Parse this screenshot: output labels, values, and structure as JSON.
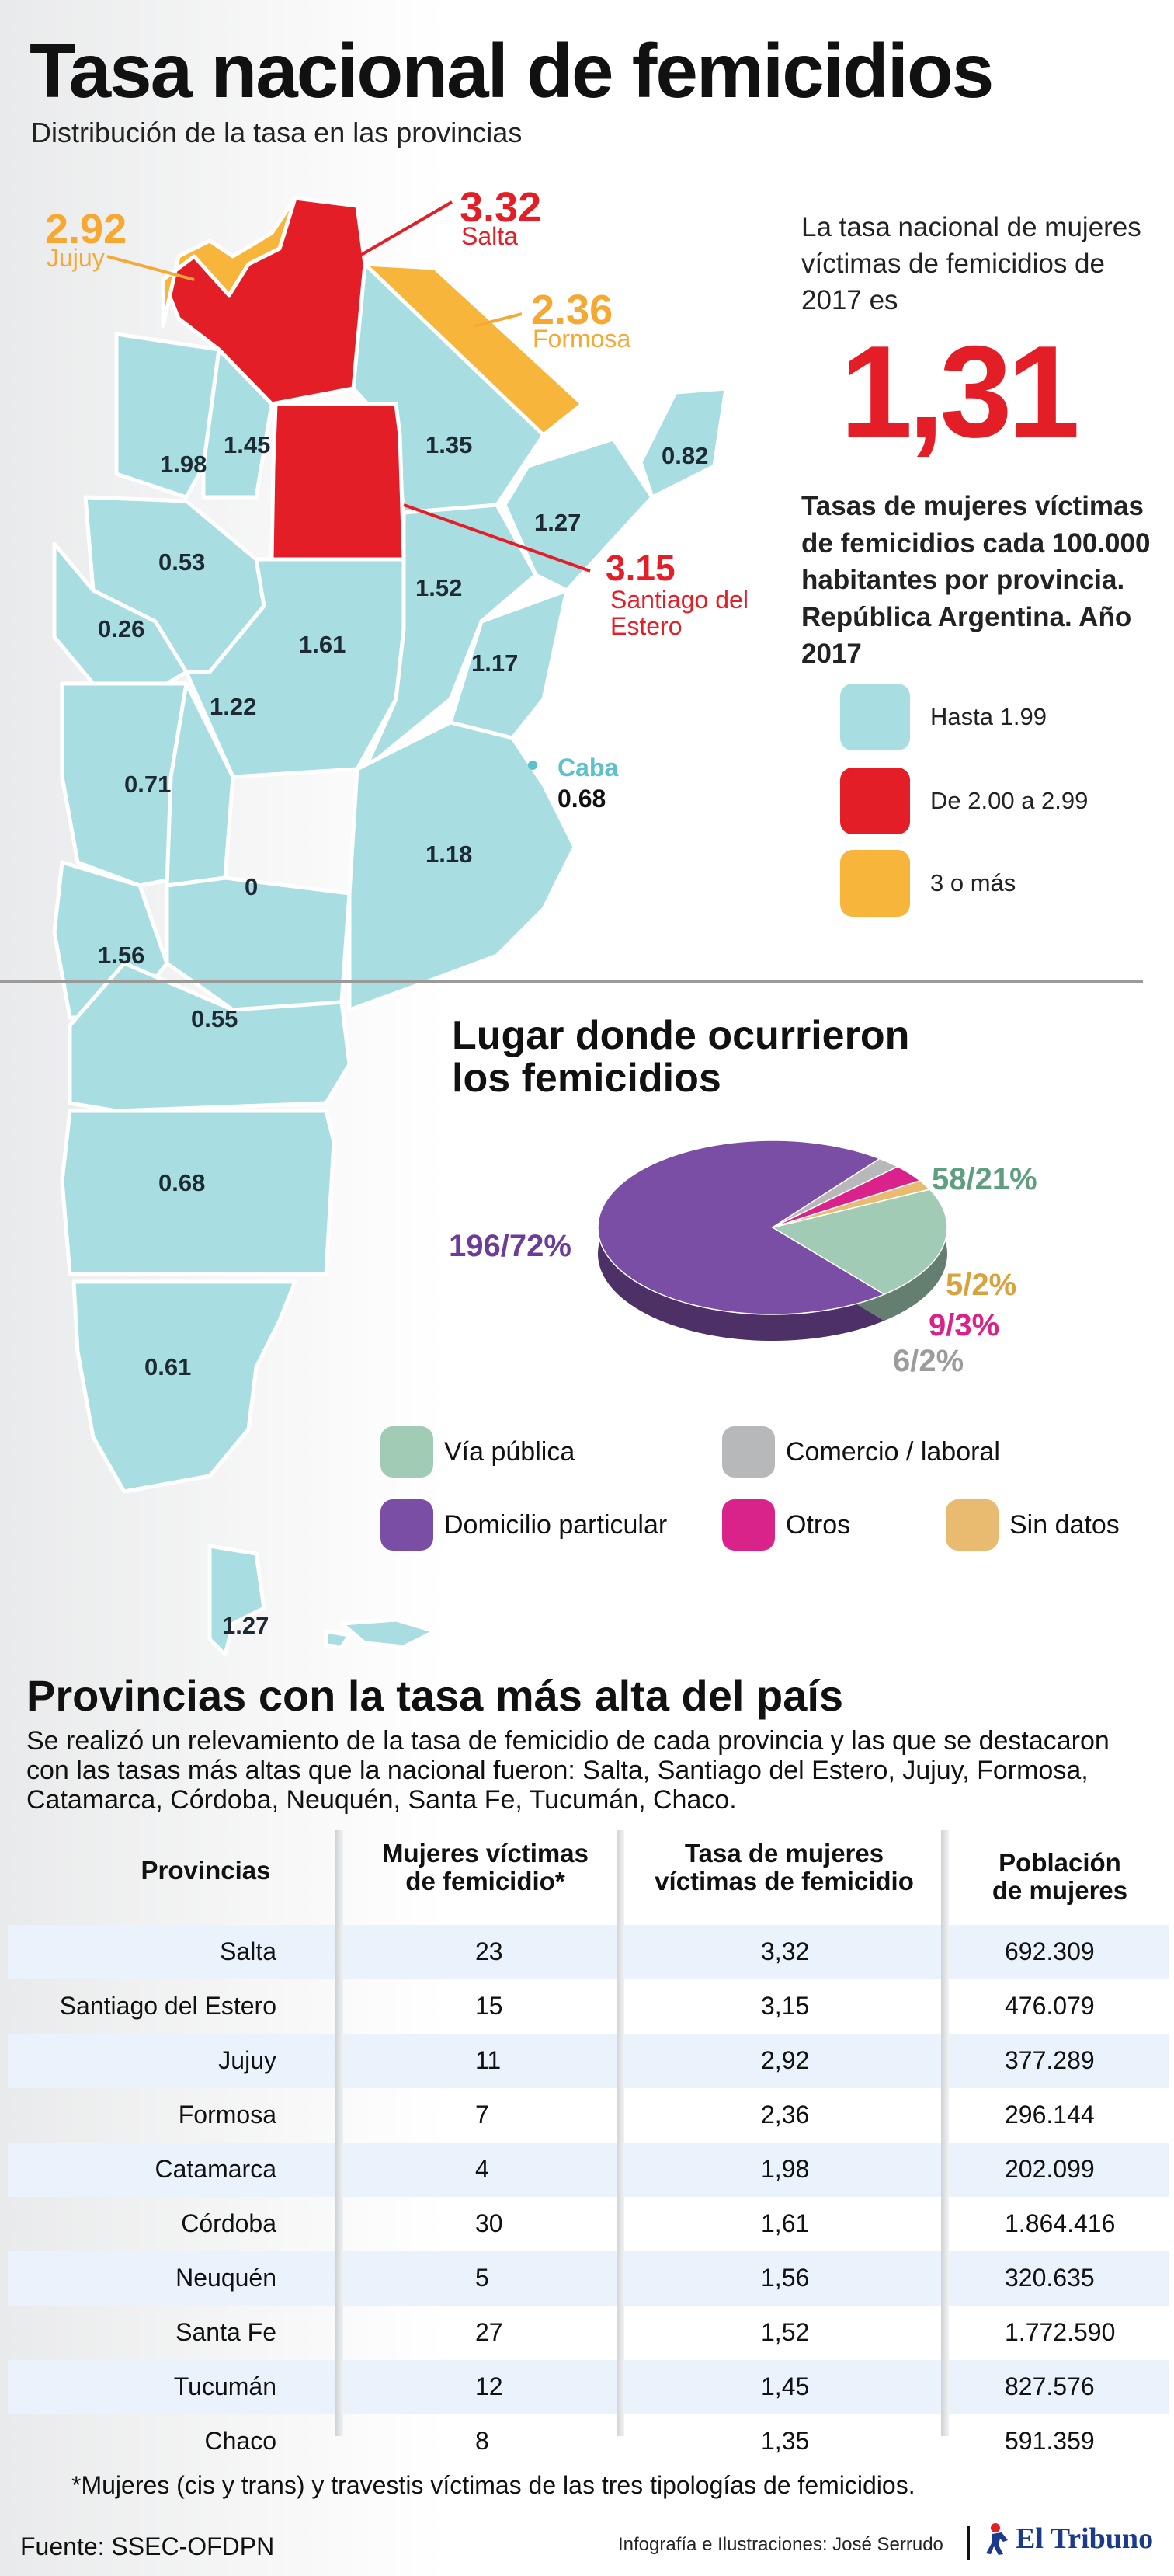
{
  "header": {
    "title": "Tasa nacional de femicidios",
    "subtitle": "Distribución de la tasa en las provincias"
  },
  "colors": {
    "low": "#a8dde2",
    "mid": "#e41e26",
    "high": "#f7b53b",
    "via_publica": "#a2cbb5",
    "domicilio": "#7b4ea5",
    "comercio": "#b6b8ba",
    "otros": "#d9228a",
    "sin_datos": "#e8bb71",
    "caba": "#5bc2cc"
  },
  "map": {
    "labels": [
      "1.45",
      "1.98",
      "1.35",
      "0.82",
      "1.27",
      "0.53",
      "1.52",
      "0.26",
      "1.61",
      "1.17",
      "1.22",
      "0.71",
      "1.18",
      "0",
      "1.56",
      "0.55",
      "0.68",
      "0.61",
      "1.27"
    ],
    "callouts": {
      "jujuy": {
        "value": "2.92",
        "name": "Jujuy"
      },
      "salta": {
        "value": "3.32",
        "name": "Salta"
      },
      "formosa": {
        "value": "2.36",
        "name": "Formosa"
      },
      "santiago": {
        "value": "3.15",
        "name": "Santiago del Estero"
      },
      "caba": {
        "name": "Caba",
        "value": "0.68"
      }
    }
  },
  "national": {
    "intro": "La tasa nacional de mujeres víctimas de femicidios de 2017 es",
    "value": "1,31"
  },
  "legend": {
    "caption": "Tasas de mujeres víctimas de femicidios cada 100.000 habitantes por provincia. República Argentina. Año 2017",
    "items": [
      {
        "label": "Hasta 1.99",
        "color_key": "low"
      },
      {
        "label": "De 2.00 a 2.99",
        "color_key": "mid"
      },
      {
        "label": "3 o más",
        "color_key": "high"
      }
    ]
  },
  "pie": {
    "title_line1": "Lugar donde ocurrieron",
    "title_line2": "los femicidios",
    "labels": {
      "domicilio": "196/72%",
      "via_publica": "58/21%",
      "sin_datos": "5/2%",
      "otros": "9/3%",
      "comercio": "6/2%"
    },
    "categories": [
      {
        "label": "Vía pública",
        "color_key": "via_publica"
      },
      {
        "label": "Comercio / laboral",
        "color_key": "comercio"
      },
      {
        "label": "Domicilio particular",
        "color_key": "domicilio"
      },
      {
        "label": "Otros",
        "color_key": "otros"
      },
      {
        "label": "Sin datos",
        "color_key": "sin_datos"
      }
    ]
  },
  "chart_data": {
    "type": "pie",
    "title": "Lugar donde ocurrieron los femicidios",
    "categories": [
      "Domicilio particular",
      "Vía pública",
      "Sin datos",
      "Otros",
      "Comercio / laboral"
    ],
    "values": [
      196,
      58,
      5,
      9,
      6
    ],
    "percentages": [
      72,
      21,
      2,
      3,
      2
    ]
  },
  "section": {
    "title": "Provincias con la tasa más alta del país",
    "description": "Se realizó un relevamiento de la tasa de femicidio de cada provincia y las que se destacaron con las tasas más altas que la nacional fueron: Salta, Santiago del Estero, Jujuy, Formosa, Catamarca, Córdoba, Neuquén, Santa Fe, Tucumán, Chaco."
  },
  "table": {
    "headers": {
      "provincias": "Provincias",
      "victimas_1": "Mujeres víctimas",
      "victimas_2": "de femicidio*",
      "tasa_1": "Tasa de mujeres",
      "tasa_2": "víctimas de femicidio",
      "poblacion_1": "Población",
      "poblacion_2": "de mujeres"
    },
    "rows": [
      {
        "provincia": "Salta",
        "victimas": "23",
        "tasa": "3,32",
        "poblacion": "692.309"
      },
      {
        "provincia": "Santiago del Estero",
        "victimas": "15",
        "tasa": "3,15",
        "poblacion": "476.079"
      },
      {
        "provincia": "Jujuy",
        "victimas": "11",
        "tasa": "2,92",
        "poblacion": "377.289"
      },
      {
        "provincia": "Formosa",
        "victimas": "7",
        "tasa": "2,36",
        "poblacion": "296.144"
      },
      {
        "provincia": "Catamarca",
        "victimas": "4",
        "tasa": "1,98",
        "poblacion": "202.099"
      },
      {
        "provincia": "Córdoba",
        "victimas": "30",
        "tasa": "1,61",
        "poblacion": "1.864.416"
      },
      {
        "provincia": "Neuquén",
        "victimas": "5",
        "tasa": "1,56",
        "poblacion": "320.635"
      },
      {
        "provincia": "Santa Fe",
        "victimas": "27",
        "tasa": "1,52",
        "poblacion": "1.772.590"
      },
      {
        "provincia": "Tucumán",
        "victimas": "12",
        "tasa": "1,45",
        "poblacion": "827.576"
      },
      {
        "provincia": "Chaco",
        "victimas": "8",
        "tasa": "1,35",
        "poblacion": "591.359"
      }
    ]
  },
  "footer": {
    "footnote": "*Mujeres (cis y trans) y travestis víctimas de las tres tipologías de femicidios.",
    "source": "Fuente: SSEC-OFDPN",
    "credits": "Infografía e Ilustraciones: José Serrudo",
    "brand": "El Tribuno"
  }
}
